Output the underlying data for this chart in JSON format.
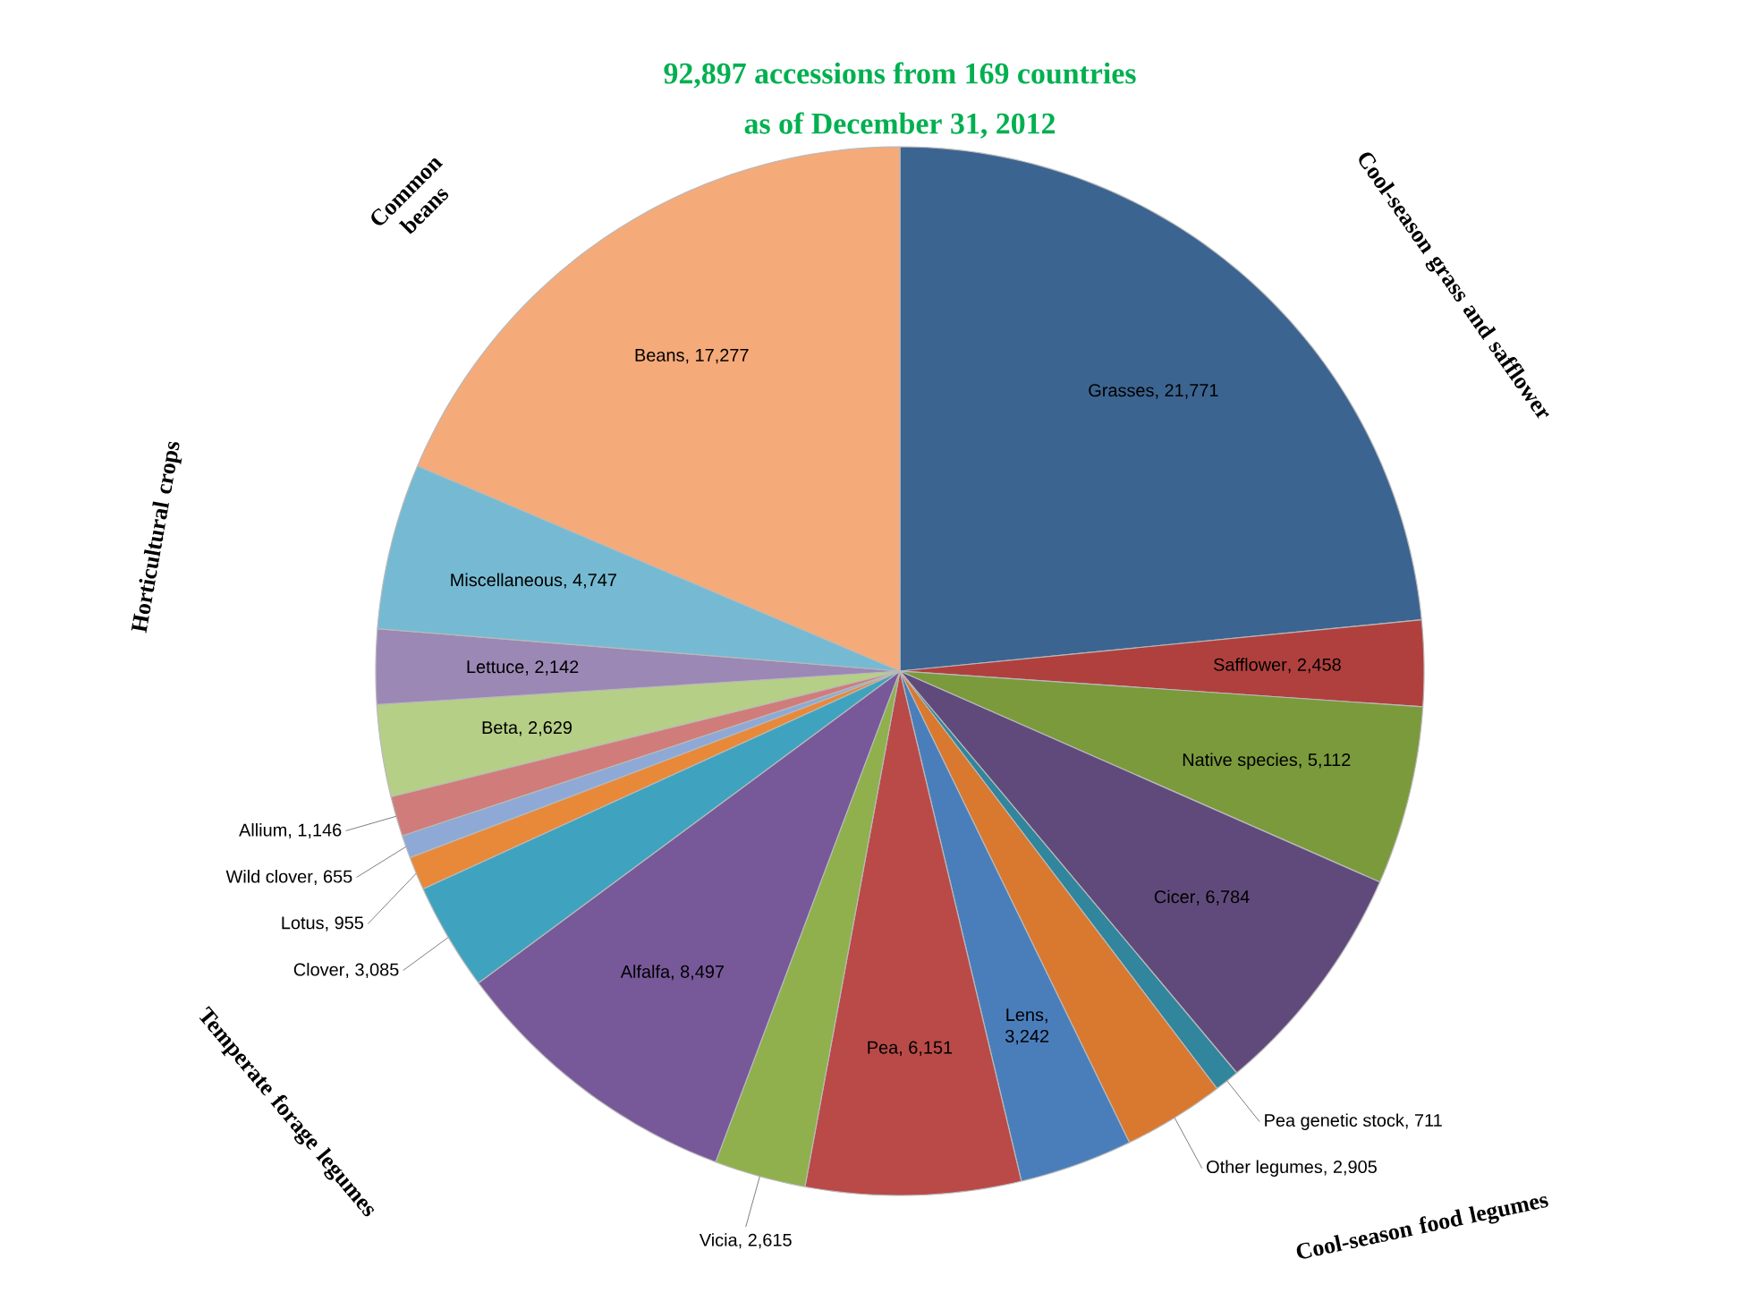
{
  "chart_data": {
    "type": "pie",
    "title": "92,897 accessions from 169 countries",
    "subtitle": "as of December 31, 2012",
    "categories": [
      "Grasses",
      "Safflower",
      "Native species",
      "Cicer",
      "Pea genetic stock",
      "Other legumes",
      "Lens",
      "Pea",
      "Vicia",
      "Alfalfa",
      "Clover",
      "Lotus",
      "Wild clover",
      "Allium",
      "Beta",
      "Lettuce",
      "Miscellaneous",
      "Beans"
    ],
    "values": [
      21771,
      2458,
      5112,
      6784,
      711,
      2905,
      3242,
      6151,
      2615,
      8497,
      3085,
      955,
      655,
      1146,
      2629,
      2142,
      4747,
      17277
    ],
    "colors": [
      "#3c6491",
      "#b0403e",
      "#7a9a3c",
      "#604a7b",
      "#31859c",
      "#d9782f",
      "#4a7ebb",
      "#b94a48",
      "#8fb04c",
      "#77599a",
      "#3fa3bf",
      "#e8893a",
      "#8ea9d5",
      "#d07c7a",
      "#b6cf86",
      "#9b88b5",
      "#75bad2",
      "#f5aa79"
    ],
    "value_labels": [
      ", 21,771",
      ", 2,458",
      ", 5,112",
      ", 6,784",
      ", 711",
      ", 2,905",
      ", 3,242",
      ", 6,151",
      ", 2,615",
      ", 8,497",
      ", 3,085",
      ", 955",
      ", 655",
      ", 1,146",
      ", 2,629",
      ", 2,142",
      ", 4,747",
      ", 17,277"
    ],
    "annotations": [
      "Common beans",
      "Cool-season grass and safflower",
      "Horticultural crops",
      "Temperate forage legumes",
      "Cool-season food legumes"
    ]
  }
}
